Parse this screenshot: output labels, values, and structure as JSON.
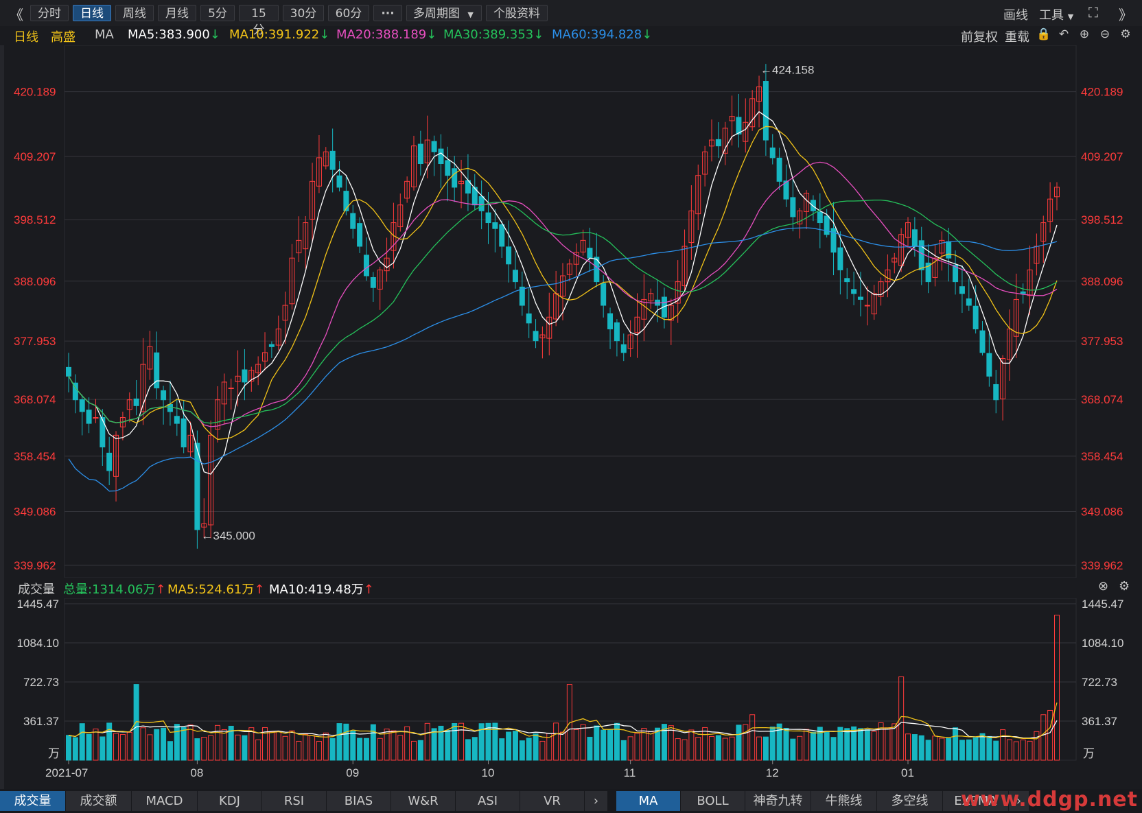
{
  "toolbar": {
    "back": "《",
    "tabs": [
      "分时",
      "日线",
      "周线",
      "月线",
      "5分",
      "15分",
      "30分",
      "60分"
    ],
    "active_tab": "日线",
    "more": "···",
    "multi_period": "多周期图",
    "stock_info": "个股资料",
    "draw": "画线",
    "tools": "工具",
    "forward": "》"
  },
  "ma_bar": {
    "period": "日线",
    "stock": "高盛",
    "ma_label": "MA",
    "ma5": "MA5:383.900",
    "ma10": "MA10:391.922",
    "ma20": "MA20:388.189",
    "ma30": "MA30:389.353",
    "ma60": "MA60:394.828",
    "adjust": "前复权",
    "reload": "重载"
  },
  "volume_bar": {
    "label": "成交量",
    "total": "总量:1314.06万",
    "ma5": "MA5:524.61万",
    "ma10": "MA10:419.48万"
  },
  "colors": {
    "up": "#ff3b3b",
    "down": "#17b7c2",
    "ma5": "#ffffff",
    "ma10": "#f2c318",
    "ma20": "#e84fc0",
    "ma30": "#25c25b",
    "ma60": "#2c8fe8",
    "grid": "#34353b",
    "price_label": "#ff3b3b"
  },
  "bottom_tabs": {
    "indicators": [
      "成交量",
      "成交额",
      "MACD",
      "KDJ",
      "RSI",
      "BIAS",
      "W&R",
      "ASI",
      "VR"
    ],
    "active_indicator": "成交量",
    "overlays": [
      "MA",
      "BOLL",
      "神奇九转",
      "牛熊线",
      "多空线",
      "EXPMA"
    ],
    "active_overlay": "MA"
  },
  "watermark": "www.ddgp.net",
  "chart_data": [
    {
      "type": "candlestick",
      "title": "",
      "yticks": [
        420.189,
        409.207,
        398.512,
        388.096,
        377.953,
        368.074,
        358.454,
        349.086,
        339.962
      ],
      "ylim": [
        339.962,
        427
      ],
      "x_labels": [
        "2021-07",
        "08",
        "09",
        "10",
        "11",
        "12",
        "01"
      ],
      "annotations": {
        "high": "424.158",
        "low": "345.000"
      },
      "series": [
        {
          "name": "K"
        }
      ]
    },
    {
      "type": "bar",
      "title": "",
      "yticks": [
        1445.47,
        1084.1,
        722.73,
        361.37
      ],
      "unit": "万",
      "ylim": [
        0,
        1445.47
      ]
    }
  ]
}
